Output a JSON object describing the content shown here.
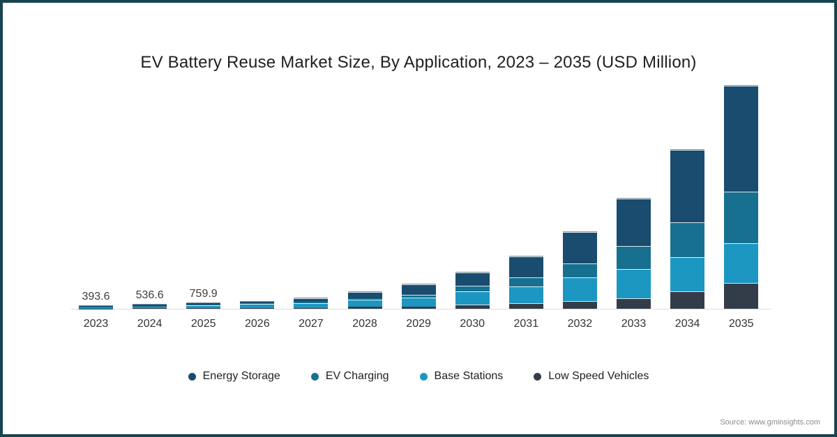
{
  "title": "EV Battery Reuse Market Size, By Application, 2023 – 2035 (USD Million)",
  "source_note": "Source: www.gminsights.com",
  "colors": {
    "energy_storage": "#194C6F",
    "ev_charging": "#17708F",
    "base_stations": "#1C97C2",
    "low_speed_vehicles": "#333D49",
    "frame_border": "#17454F",
    "axis_line": "#DCDCDC"
  },
  "chart_data": {
    "type": "bar",
    "stacked": true,
    "title": "EV Battery Reuse Market Size, By Application, 2023 – 2035 (USD Million)",
    "unit": "USD Million",
    "xlabel": "",
    "ylabel": "",
    "grid": false,
    "legend_position": "bottom",
    "categories": [
      "2023",
      "2024",
      "2025",
      "2026",
      "2027",
      "2028",
      "2029",
      "2030",
      "2031",
      "2032",
      "2033",
      "2034",
      "2035"
    ],
    "series": [
      {
        "name": "Low Speed Vehicles",
        "color": "#333D49",
        "values": [
          40,
          55,
          75,
          95,
          140,
          240,
          315,
          570,
          760,
          1045,
          1425,
          2375,
          3500
        ]
      },
      {
        "name": "Base Stations",
        "color": "#1C97C2",
        "values": [
          200,
          265,
          380,
          545,
          665,
          950,
          1205,
          1805,
          2280,
          3230,
          3990,
          4655,
          5400
        ]
      },
      {
        "name": "EV Charging",
        "color": "#17708F",
        "values": [
          55,
          85,
          115,
          120,
          170,
          240,
          410,
          760,
          1235,
          1900,
          3135,
          4750,
          7100
        ]
      },
      {
        "name": "Energy Storage",
        "color": "#194C6F",
        "values": [
          98.6,
          131.6,
          189.9,
          225,
          480,
          855,
          1370,
          1805,
          2850,
          4275,
          6460,
          9880,
          14400
        ]
      }
    ],
    "totals": [
      393.6,
      536.6,
      759.9,
      985,
      1455,
      2285,
      3300,
      4940,
      7125,
      10450,
      15010,
      21660,
      30400
    ],
    "data_labels": [
      "393.6",
      "536.6",
      "759.9",
      "",
      "",
      "",
      "",
      "",
      "",
      "",
      "",
      "",
      ""
    ],
    "legend": [
      {
        "label": "Energy Storage",
        "color": "#194C6F"
      },
      {
        "label": "EV Charging",
        "color": "#17708F"
      },
      {
        "label": "Base Stations",
        "color": "#1C97C2"
      },
      {
        "label": "Low Speed Vehicles",
        "color": "#333D49"
      }
    ]
  }
}
